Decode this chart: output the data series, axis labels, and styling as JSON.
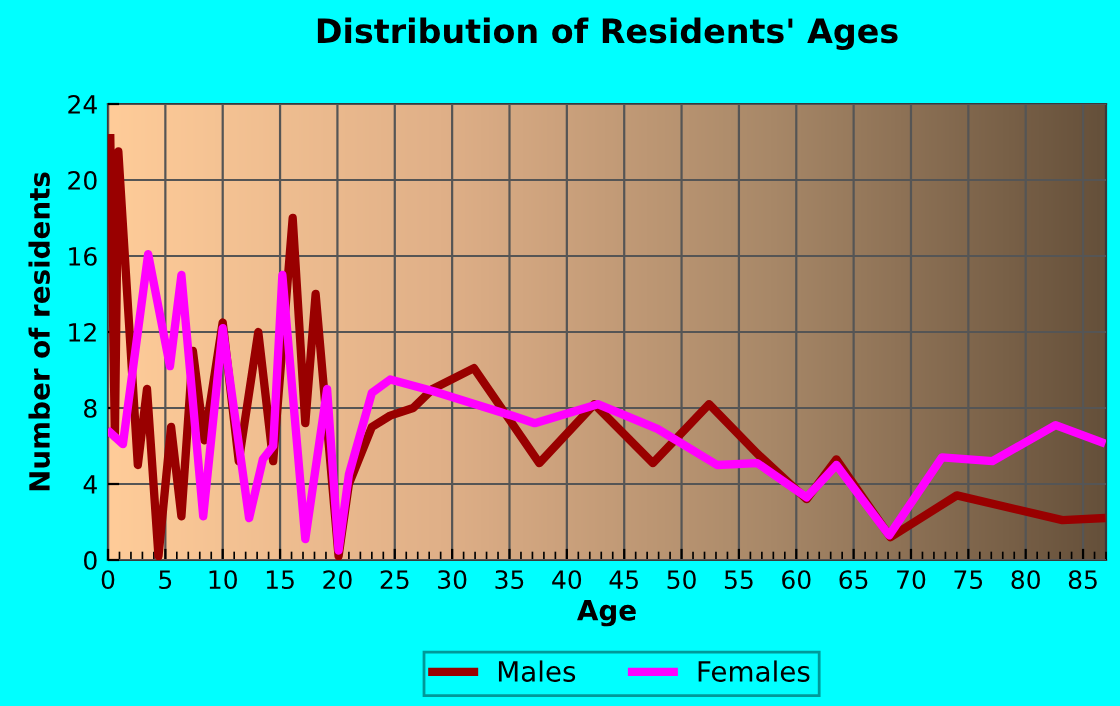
{
  "chart_data": {
    "type": "line",
    "title": "Distribution of Residents' Ages",
    "xlabel": "Age",
    "ylabel": "Number of residents",
    "xlim": [
      0,
      87
    ],
    "xticks": [
      0,
      5,
      10,
      15,
      20,
      25,
      30,
      35,
      40,
      45,
      50,
      55,
      60,
      65,
      70,
      75,
      80,
      85
    ],
    "ylim": [
      0,
      24
    ],
    "yticks": [
      0,
      4,
      8,
      12,
      16,
      20,
      24
    ],
    "grid": true,
    "legend": "bottom",
    "marker": "none",
    "line_style": "solid",
    "series": [
      {
        "name": "Males",
        "color": "#990000",
        "x": [
          0.2,
          0.6,
          0.9,
          2.6,
          3.4,
          4.4,
          5.5,
          6.4,
          7.4,
          8.4,
          10,
          11.4,
          13.1,
          14.4,
          16.1,
          17.2,
          18.1,
          20.1,
          21,
          23,
          24.6,
          26.6,
          28.3,
          31.9,
          37.6,
          42.4,
          47.5,
          52.4,
          56.6,
          60.9,
          63.5,
          68.2,
          74,
          83.2,
          86.6
        ],
        "values": [
          22.2,
          6.5,
          21.5,
          5,
          9,
          0.2,
          7,
          2.3,
          11,
          6.3,
          12.5,
          5.2,
          12,
          5.2,
          18,
          7.2,
          14,
          0.2,
          4,
          7,
          7.6,
          8,
          9,
          10.1,
          5.1,
          8.2,
          5.1,
          8.2,
          5.6,
          3.2,
          5.3,
          1.2,
          3.4,
          2.1,
          2.2
        ]
      },
      {
        "name": "Females",
        "color": "#ff00ff",
        "x": [
          0.2,
          1.3,
          3.5,
          5.4,
          6.4,
          8.3,
          10,
          12.3,
          13.5,
          14.4,
          15.2,
          17.2,
          19.1,
          20.1,
          21,
          23,
          24.6,
          28.3,
          35.2,
          37.2,
          42.7,
          47.9,
          53.1,
          56.6,
          60.9,
          63.5,
          68.1,
          72.7,
          77.1,
          82.6,
          86.6
        ],
        "values": [
          6.7,
          6.1,
          16.1,
          10.2,
          15,
          2.3,
          12.2,
          2.2,
          5.3,
          6,
          15,
          1.1,
          9,
          0.5,
          4.5,
          8.8,
          9.5,
          8.9,
          7.6,
          7.2,
          8.2,
          6.9,
          5,
          5.1,
          3.3,
          5,
          1.3,
          5.4,
          5.2,
          7.1,
          6.2
        ]
      }
    ]
  }
}
